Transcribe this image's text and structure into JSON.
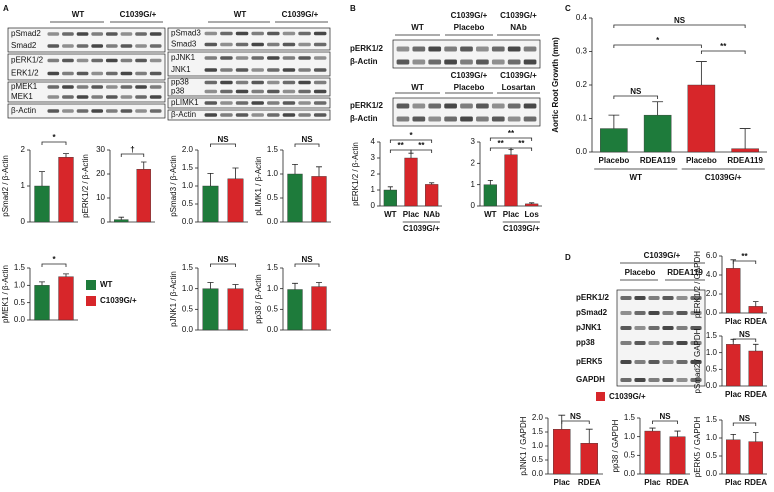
{
  "panels": {
    "A": {
      "letter": "A",
      "blot_left": {
        "headers": [
          "WT",
          "C1039G/+"
        ],
        "rows": [
          "pSmad2",
          "Smad2",
          "pERK1/2",
          "ERK1/2",
          "pMEK1",
          "MEK1",
          "β-Actin"
        ]
      },
      "blot_right": {
        "headers": [
          "WT",
          "C1039G/+"
        ],
        "rows": [
          "pSmad3",
          "Smad3",
          "pJNK1",
          "JNK1",
          "pp38",
          "p38",
          "pLIMK1",
          "β-Actin"
        ]
      },
      "legend": [
        {
          "name": "WT",
          "color": "#1e7b3b"
        },
        {
          "name": "C1039G/+",
          "color": "#d7262a"
        }
      ]
    },
    "B": {
      "letter": "B",
      "blot_top": {
        "headers": [
          [
            "WT"
          ],
          [
            "C1039G/+",
            "Placebo"
          ],
          [
            "C1039G/+",
            "NAb"
          ]
        ],
        "rows": [
          "pERK1/2",
          "β-Actin"
        ]
      },
      "blot_bottom": {
        "headers": [
          [
            "WT"
          ],
          [
            "C1039G/+",
            "Placebo"
          ],
          [
            "C1039G/+",
            "Losartan"
          ]
        ],
        "rows": [
          "pERK1/2",
          "β-Actin"
        ]
      }
    },
    "C": {
      "letter": "C"
    },
    "D": {
      "letter": "D",
      "blot": {
        "group": "C1039G/+",
        "headers": [
          "Placebo",
          "RDEA119"
        ],
        "rows": [
          "pERK1/2",
          "pSmad2",
          "pJNK1",
          "pp38",
          "pERK5",
          "GAPDH"
        ]
      },
      "legend": [
        {
          "name": "C1039G/+",
          "color": "#d7262a"
        }
      ]
    }
  },
  "chart_data": [
    {
      "type": "bar",
      "ylabel": "pSmad2 / β-Actin",
      "values": [
        1.0,
        1.8
      ],
      "errors": [
        0.4,
        0.1
      ],
      "colors": [
        "#1e7b3b",
        "#d7262a"
      ],
      "ylim": [
        0,
        2
      ],
      "yticks": [
        0,
        1,
        2
      ],
      "annotations": [
        "*"
      ]
    },
    {
      "type": "bar",
      "ylabel": "pERK1/2 / β-Actin",
      "values": [
        1,
        22
      ],
      "errors": [
        1,
        3
      ],
      "colors": [
        "#1e7b3b",
        "#d7262a"
      ],
      "ylim": [
        0,
        30
      ],
      "yticks": [
        0,
        10,
        20,
        30
      ],
      "annotations": [
        "†"
      ]
    },
    {
      "type": "bar",
      "ylabel": "pSmad3 / β-Actin",
      "values": [
        1.0,
        1.2
      ],
      "errors": [
        0.35,
        0.3
      ],
      "colors": [
        "#1e7b3b",
        "#d7262a"
      ],
      "ylim": [
        0,
        2
      ],
      "yticks": [
        {
          "value": 0,
          "label": "0.0"
        },
        0.5,
        {
          "value": 1,
          "label": "1.0"
        },
        1.5,
        {
          "value": 2,
          "label": "2.0"
        }
      ],
      "annotations": [
        "NS"
      ]
    },
    {
      "type": "bar",
      "ylabel": "pLIMK1 / β-Actin",
      "values": [
        1.0,
        0.95
      ],
      "errors": [
        0.2,
        0.2
      ],
      "colors": [
        "#1e7b3b",
        "#d7262a"
      ],
      "ylim": [
        0,
        1.5
      ],
      "yticks": [
        {
          "value": 0,
          "label": "0.0"
        },
        0.5,
        {
          "value": 1,
          "label": "1.0"
        },
        1.5
      ],
      "annotations": [
        "NS"
      ]
    },
    {
      "type": "bar",
      "ylabel": "pMEK1 / β-Actin",
      "values": [
        1.0,
        1.25
      ],
      "errors": [
        0.1,
        0.08
      ],
      "colors": [
        "#1e7b3b",
        "#d7262a"
      ],
      "ylim": [
        0,
        1.5
      ],
      "yticks": [
        {
          "value": 0,
          "label": "0.0"
        },
        0.5,
        {
          "value": 1,
          "label": "1.0"
        },
        1.5
      ],
      "annotations": [
        "*"
      ]
    },
    {
      "type": "bar",
      "ylabel": "pJNK1 / β-Actin",
      "values": [
        1.0,
        1.0
      ],
      "errors": [
        0.15,
        0.1
      ],
      "colors": [
        "#1e7b3b",
        "#d7262a"
      ],
      "ylim": [
        0,
        1.5
      ],
      "yticks": [
        {
          "value": 0,
          "label": "0.0"
        },
        0.5,
        {
          "value": 1,
          "label": "1.0"
        },
        1.5
      ],
      "annotations": [
        "NS"
      ]
    },
    {
      "type": "bar",
      "ylabel": "pp38 / β-Actin",
      "values": [
        0.98,
        1.05
      ],
      "errors": [
        0.15,
        0.1
      ],
      "colors": [
        "#1e7b3b",
        "#d7262a"
      ],
      "ylim": [
        0,
        1.5
      ],
      "yticks": [
        {
          "value": 0,
          "label": "0.0"
        },
        0.5,
        {
          "value": 1,
          "label": "1.0"
        },
        1.5
      ],
      "annotations": [
        "NS"
      ]
    },
    {
      "type": "bar",
      "ylabel": "pERK1/2 / β-Actin",
      "categories": [
        "WT",
        "Plac",
        "NAb"
      ],
      "group": "C1039G/+",
      "values": [
        1.0,
        3.0,
        1.35
      ],
      "errors": [
        0.2,
        0.3,
        0.1
      ],
      "colors": [
        "#1e7b3b",
        "#d7262a",
        "#d7262a"
      ],
      "ylim": [
        0,
        4
      ],
      "yticks": [
        0,
        1,
        2,
        3,
        4
      ],
      "annotations": [
        "**",
        "*",
        "**"
      ]
    },
    {
      "type": "bar",
      "categories": [
        "WT",
        "Plac",
        "Los"
      ],
      "group": "C1039G/+",
      "values": [
        1.0,
        2.4,
        0.1
      ],
      "errors": [
        0.2,
        0.25,
        0.05
      ],
      "colors": [
        "#1e7b3b",
        "#d7262a",
        "#d7262a"
      ],
      "ylim": [
        0,
        3
      ],
      "yticks": [
        0,
        1,
        2,
        3
      ],
      "annotations": [
        "**",
        "**",
        "**"
      ]
    },
    {
      "type": "bar",
      "ylabel": "Aortic Root Growth (mm)",
      "categories": [
        "Placebo",
        "RDEA119",
        "Placebo",
        "RDEA119"
      ],
      "groups": [
        "WT",
        "C1039G/+"
      ],
      "values": [
        0.07,
        0.11,
        0.2,
        0.01
      ],
      "errors": [
        0.04,
        0.04,
        0.07,
        0.06
      ],
      "colors": [
        "#1e7b3b",
        "#1e7b3b",
        "#d7262a",
        "#d7262a"
      ],
      "ylim": [
        0,
        0.4
      ],
      "yticks": [
        {
          "value": 0,
          "label": "0.0"
        },
        0.1,
        0.2,
        0.3,
        0.4
      ],
      "annotations": [
        "NS",
        "*",
        "**",
        "NS"
      ]
    },
    {
      "type": "bar",
      "ylabel": "pERK1/2 / GAPDH",
      "categories": [
        "Plac",
        "RDEA"
      ],
      "values": [
        4.7,
        0.7
      ],
      "errors": [
        0.9,
        0.5
      ],
      "colors": [
        "#d7262a",
        "#d7262a"
      ],
      "ylim": [
        0,
        6
      ],
      "yticks": [
        {
          "value": 0,
          "label": "0.0"
        },
        {
          "value": 2,
          "label": "2.0"
        },
        {
          "value": 4,
          "label": "4.0"
        },
        {
          "value": 6,
          "label": "6.0"
        }
      ],
      "annotations": [
        "**"
      ]
    },
    {
      "type": "bar",
      "ylabel": "pSmad2 / GAPDH",
      "categories": [
        "Plac",
        "RDEA"
      ],
      "values": [
        1.25,
        1.05
      ],
      "errors": [
        0.15,
        0.2
      ],
      "colors": [
        "#d7262a",
        "#d7262a"
      ],
      "ylim": [
        0,
        1.5
      ],
      "yticks": [
        {
          "value": 0,
          "label": "0.0"
        },
        0.5,
        {
          "value": 1,
          "label": "1.0"
        },
        1.5
      ],
      "annotations": [
        "NS"
      ]
    },
    {
      "type": "bar",
      "ylabel": "pJNK1 / GAPDH",
      "categories": [
        "Plac",
        "RDEA"
      ],
      "values": [
        1.6,
        1.1
      ],
      "errors": [
        0.5,
        0.5
      ],
      "colors": [
        "#d7262a",
        "#d7262a"
      ],
      "ylim": [
        0,
        2
      ],
      "yticks": [
        {
          "value": 0,
          "label": "0.0"
        },
        0.5,
        {
          "value": 1,
          "label": "1.0"
        },
        1.5,
        {
          "value": 2,
          "label": "2.0"
        }
      ],
      "annotations": [
        "NS"
      ]
    },
    {
      "type": "bar",
      "ylabel": "pp38 / GAPDH",
      "categories": [
        "Plac",
        "RDEA"
      ],
      "values": [
        1.15,
        1.0
      ],
      "errors": [
        0.08,
        0.15
      ],
      "colors": [
        "#d7262a",
        "#d7262a"
      ],
      "ylim": [
        0,
        1.5
      ],
      "yticks": [
        {
          "value": 0,
          "label": "0.0"
        },
        0.5,
        {
          "value": 1,
          "label": "1.0"
        },
        1.5
      ],
      "annotations": [
        "NS"
      ]
    },
    {
      "type": "bar",
      "ylabel": "pERK5 / GAPDH",
      "categories": [
        "Plac",
        "RDEA"
      ],
      "values": [
        0.95,
        0.9
      ],
      "errors": [
        0.15,
        0.25
      ],
      "colors": [
        "#d7262a",
        "#d7262a"
      ],
      "ylim": [
        0,
        1.5
      ],
      "yticks": [
        {
          "value": 0,
          "label": "0.0"
        },
        0.5,
        {
          "value": 1,
          "label": "1.0"
        },
        1.5
      ],
      "annotations": [
        "NS"
      ]
    }
  ]
}
